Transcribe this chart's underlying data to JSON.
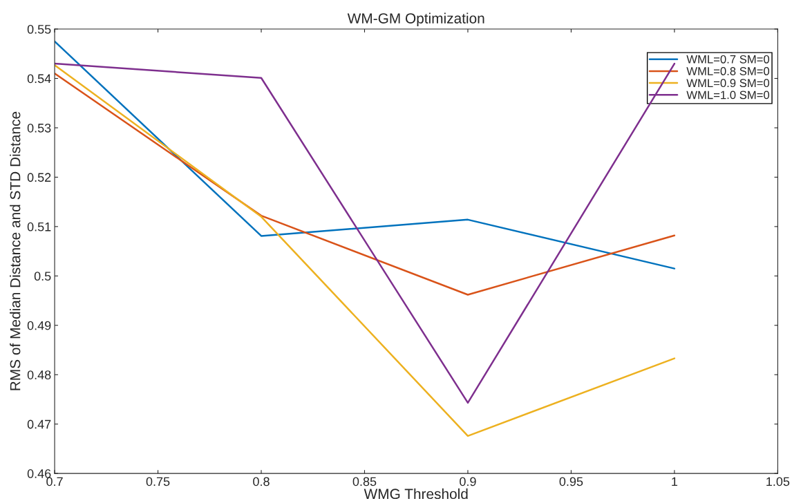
{
  "chart_data": {
    "type": "line",
    "title": "WM-GM Optimization",
    "xlabel": "WMG Threshold",
    "ylabel": "RMS of Median Distance and STD Distance",
    "x": [
      0.7,
      0.8,
      0.9,
      1.0
    ],
    "series": [
      {
        "name": "WML=0.7 SM=0",
        "color": "#0072bd",
        "values": [
          0.5475,
          0.5081,
          0.5114,
          0.5015
        ]
      },
      {
        "name": "WML=0.8 SM=0",
        "color": "#d95319",
        "values": [
          0.541,
          0.5122,
          0.4962,
          0.5082
        ]
      },
      {
        "name": "WML=0.9 SM=0",
        "color": "#edb120",
        "values": [
          0.5427,
          0.512,
          0.4676,
          0.4833
        ]
      },
      {
        "name": "WML=1.0 SM=0",
        "color": "#7e2f8e",
        "values": [
          0.543,
          0.5401,
          0.4743,
          0.543
        ]
      }
    ],
    "xlim": [
      0.7,
      1.05
    ],
    "xticks": [
      0.7,
      0.75,
      0.8,
      0.85,
      0.9,
      0.95,
      1,
      1.05
    ],
    "ylim": [
      0.46,
      0.55
    ],
    "yticks": [
      0.46,
      0.47,
      0.48,
      0.49,
      0.5,
      0.51,
      0.52,
      0.53,
      0.54,
      0.55
    ],
    "grid": false,
    "legend": "top right",
    "marker": "none",
    "line_style": "solid"
  }
}
